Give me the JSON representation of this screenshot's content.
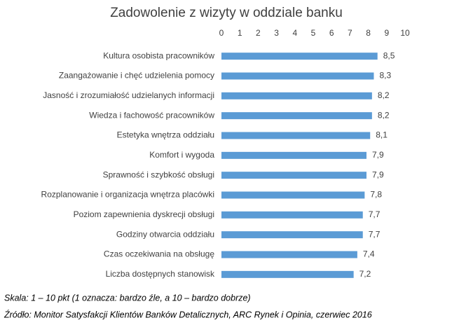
{
  "chart_data": {
    "type": "bar",
    "orientation": "horizontal",
    "title": "Zadowolenie z wizyty w oddziale banku",
    "categories": [
      "Kultura osobista pracowników",
      "Zaangażowanie i chęć udzielenia pomocy",
      "Jasność i zrozumiałość udzielanych informacji",
      "Wiedza i fachowość pracowników",
      "Estetyka wnętrza oddziału",
      "Komfort i wygoda",
      "Sprawność i szybkość obsługi",
      "Rozplanowanie i organizacja wnętrza placówki",
      "Poziom zapewnienia dyskrecji obsługi",
      "Godziny otwarcia oddziału",
      "Czas oczekiwania na obsługę",
      "Liczba dostępnych stanowisk"
    ],
    "values": [
      8.5,
      8.3,
      8.2,
      8.2,
      8.1,
      7.9,
      7.9,
      7.8,
      7.7,
      7.7,
      7.4,
      7.2
    ],
    "value_labels": [
      "8,5",
      "8,3",
      "8,2",
      "8,2",
      "8,1",
      "7,9",
      "7,9",
      "7,8",
      "7,7",
      "7,7",
      "7,4",
      "7,2"
    ],
    "color": "#5b9bd5",
    "xlim": [
      0,
      10
    ],
    "xticks": [
      0,
      1,
      2,
      3,
      4,
      5,
      6,
      7,
      8,
      9,
      10
    ],
    "grid": false,
    "notes": [
      "Skala: 1 – 10 pkt (1 oznacza: bardzo źle, a 10 – bardzo dobrze)",
      "Źródło: Monitor Satysfakcji Klientów Banków Detalicznych, ARC Rynek i Opinia, czerwiec 2016"
    ]
  }
}
